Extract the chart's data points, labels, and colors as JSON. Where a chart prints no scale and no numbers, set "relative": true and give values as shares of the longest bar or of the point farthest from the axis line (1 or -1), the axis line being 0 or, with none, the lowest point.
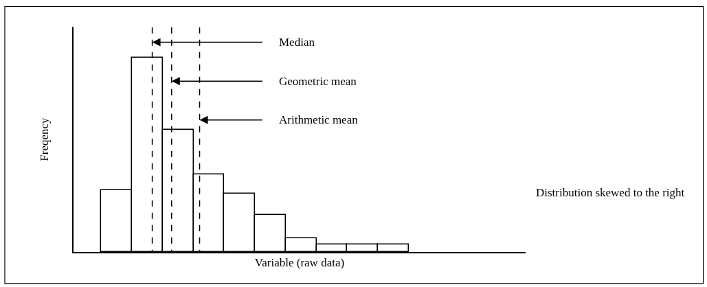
{
  "chart_data": {
    "type": "bar",
    "relative": true,
    "xlabel": "Variable (raw data)",
    "ylabel": "Freqency",
    "categories": [
      null,
      null,
      null,
      null,
      null,
      null,
      null,
      null,
      null,
      null
    ],
    "values": [
      0.32,
      1,
      0.63,
      0.4,
      0.3,
      0.19,
      0.07,
      0.04,
      0.04,
      0.04
    ],
    "color": "#ffffff",
    "tick_labels": false,
    "annotations": [
      "Median",
      "Geometric mean",
      "Arithmetic mean",
      "Distribution skewed to the right"
    ]
  }
}
